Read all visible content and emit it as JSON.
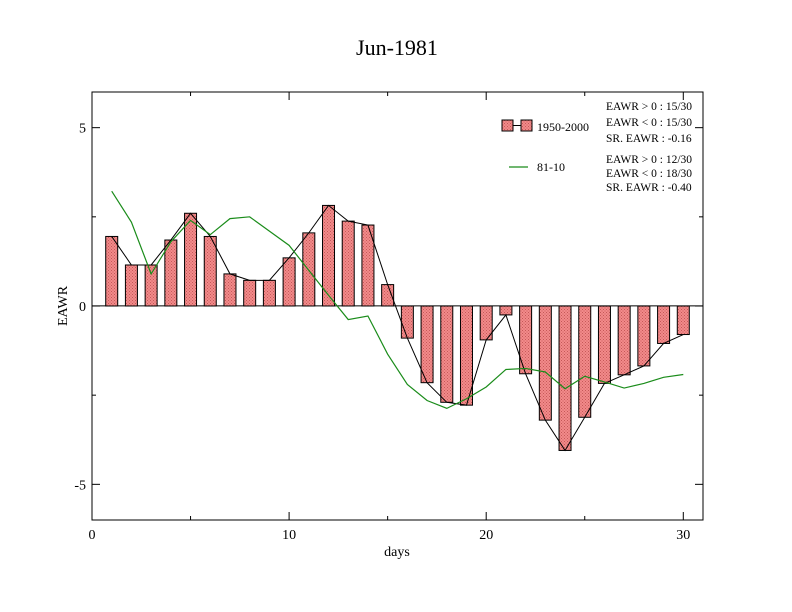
{
  "chart_data": {
    "type": "bar",
    "title": "Jun-1981",
    "xlabel": "days",
    "ylabel": "EAWR",
    "xlim": [
      0,
      31
    ],
    "ylim": [
      -6,
      6
    ],
    "x_ticks": [
      0,
      10,
      20,
      30
    ],
    "x_tick_labels": [
      "0",
      "10",
      "20",
      "30"
    ],
    "y_ticks": [
      5,
      0,
      -5
    ],
    "y_tick_labels": [
      "5",
      "0",
      "-5"
    ],
    "grid": false,
    "legend_position": "top-right",
    "x": [
      1,
      2,
      3,
      4,
      5,
      6,
      7,
      8,
      9,
      10,
      11,
      12,
      13,
      14,
      15,
      16,
      17,
      18,
      19,
      20,
      21,
      22,
      23,
      24,
      25,
      26,
      27,
      28,
      29,
      30
    ],
    "series": [
      {
        "name": "1950-2000",
        "kind": "bar",
        "color": "#ee7070",
        "values": [
          1.95,
          1.15,
          1.15,
          1.85,
          2.6,
          1.95,
          0.9,
          0.72,
          0.72,
          1.35,
          2.05,
          2.82,
          2.38,
          2.27,
          0.6,
          -0.9,
          -2.15,
          -2.7,
          -2.78,
          -0.95,
          -0.25,
          -1.9,
          -3.2,
          -4.05,
          -3.12,
          -2.17,
          -1.93,
          -1.68,
          -1.05,
          -0.8
        ]
      },
      {
        "name": "81-10",
        "kind": "line",
        "color": "#1a8c1a",
        "values": [
          3.22,
          2.35,
          0.9,
          1.8,
          2.4,
          2.0,
          2.45,
          2.5,
          2.1,
          1.7,
          1.0,
          0.3,
          -0.38,
          -0.28,
          -1.35,
          -2.2,
          -2.65,
          -2.87,
          -2.6,
          -2.27,
          -1.78,
          -1.75,
          -1.85,
          -2.32,
          -1.97,
          -2.13,
          -2.3,
          -2.17,
          -2.0,
          -1.92
        ]
      }
    ],
    "annotations": [
      "EAWR > 0 : 15/30",
      "EAWR < 0 : 15/30",
      "SR. EAWR : -0.16",
      "EAWR > 0 : 12/30",
      "EAWR < 0 : 18/30",
      "SR. EAWR : -0.40"
    ]
  }
}
